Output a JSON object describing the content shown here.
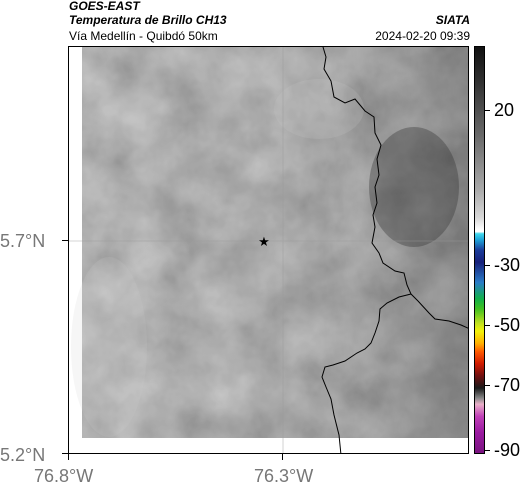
{
  "header": {
    "satellite": "GOES-EAST",
    "product": "Temperatura de Brillo CH13",
    "organization": "SIATA",
    "route": "Vía Medellín - Quibdó 50km",
    "timestamp": "2024-02-20 09:39"
  },
  "map": {
    "lat_labels": [
      "5.7°N",
      "5.2°N"
    ],
    "lon_labels": [
      "76.8°W",
      "76.3°W"
    ],
    "marker": "star",
    "marker_icon": "star-icon"
  },
  "colorbar": {
    "labels": [
      "20",
      "-30",
      "-50",
      "-70",
      "-90"
    ],
    "colors": [
      "#111111",
      "#6a6a6a",
      "#d8d8d8",
      "#ffffff",
      "#1b3c9a",
      "#12b04a",
      "#f2f20a",
      "#ff5a00",
      "#701010",
      "#e9b0c8",
      "#9a1aa0"
    ]
  }
}
